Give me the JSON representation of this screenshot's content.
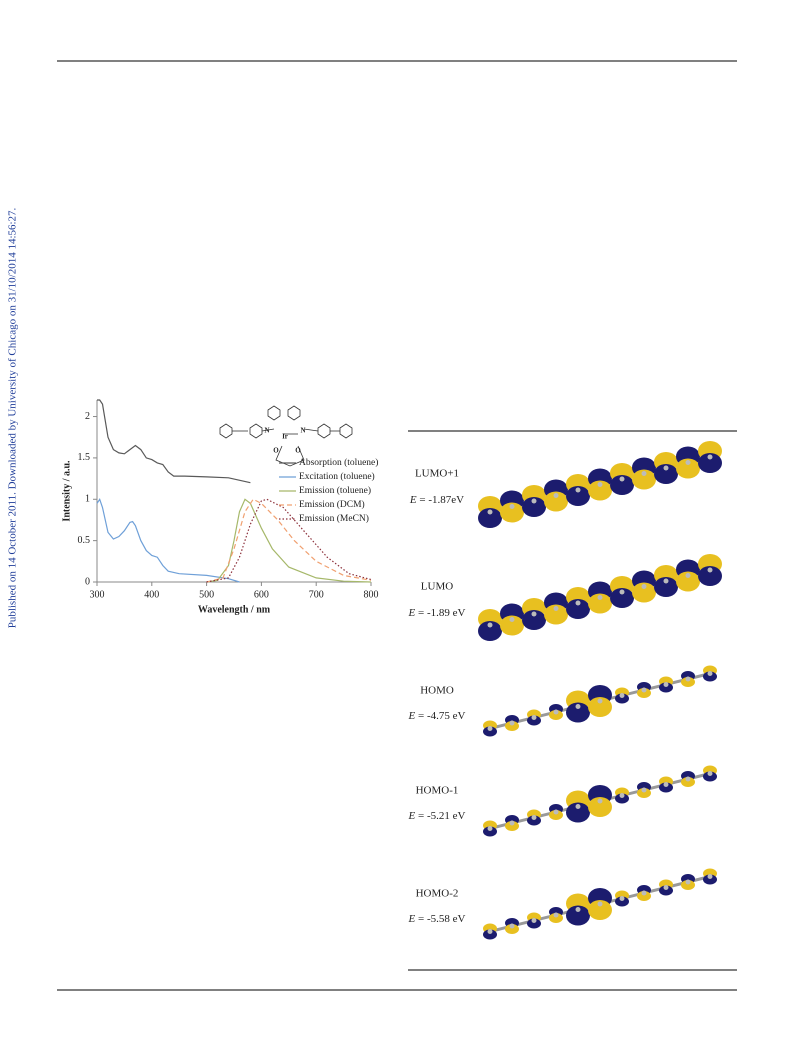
{
  "side_note": "Published on 14 October 2011. Downloaded by University of Chicago on 31/10/2014 14:56:27.",
  "chart_data": {
    "type": "line",
    "xlabel": "Wavelength / nm",
    "ylabel": "Intensity / a.u.",
    "xlim": [
      300,
      800
    ],
    "ylim": [
      0,
      2.2
    ],
    "xticks": [
      300,
      400,
      500,
      600,
      700,
      800
    ],
    "yticks": [
      0,
      0.5,
      1,
      1.5,
      2
    ],
    "legend": "upper right",
    "structure_labels": [
      "N",
      "Ir",
      "N",
      "O",
      "O"
    ],
    "series": [
      {
        "name": "Absorption (toluene)",
        "color": "#595959",
        "dash": "solid",
        "x": [
          300,
          305,
          310,
          320,
          330,
          340,
          350,
          360,
          370,
          380,
          390,
          400,
          410,
          420,
          430,
          440,
          460,
          500,
          540,
          580
        ],
        "values": [
          2.2,
          2.2,
          2.15,
          1.75,
          1.6,
          1.56,
          1.55,
          1.6,
          1.65,
          1.6,
          1.5,
          1.48,
          1.44,
          1.42,
          1.33,
          1.28,
          1.28,
          1.27,
          1.26,
          1.2
        ]
      },
      {
        "name": "Excitation (toluene)",
        "color": "#6fa0d8",
        "dash": "solid",
        "x": [
          300,
          305,
          310,
          320,
          330,
          340,
          350,
          360,
          365,
          370,
          380,
          390,
          400,
          410,
          420,
          430,
          450,
          500,
          540,
          560
        ],
        "values": [
          0.95,
          1.0,
          0.9,
          0.6,
          0.52,
          0.55,
          0.62,
          0.72,
          0.73,
          0.68,
          0.5,
          0.38,
          0.32,
          0.3,
          0.2,
          0.13,
          0.1,
          0.08,
          0.04,
          0
        ]
      },
      {
        "name": "Emission (toluene)",
        "color": "#a6b86a",
        "dash": "solid",
        "x": [
          500,
          520,
          540,
          550,
          560,
          570,
          580,
          600,
          620,
          650,
          700,
          750,
          800
        ],
        "values": [
          0,
          0.02,
          0.2,
          0.5,
          0.85,
          1.0,
          0.95,
          0.65,
          0.4,
          0.18,
          0.05,
          0.01,
          0
        ]
      },
      {
        "name": "Emission (DCM)",
        "color": "#f0a070",
        "dash": "dashed",
        "x": [
          500,
          530,
          550,
          570,
          585,
          600,
          630,
          660,
          700,
          750,
          800
        ],
        "values": [
          0,
          0.05,
          0.4,
          0.85,
          1.0,
          0.95,
          0.75,
          0.5,
          0.25,
          0.08,
          0.02
        ]
      },
      {
        "name": "Emission (MeCN)",
        "color": "#8b2f3a",
        "dash": "dotted",
        "x": [
          500,
          540,
          560,
          580,
          600,
          610,
          640,
          680,
          720,
          760,
          800
        ],
        "values": [
          0,
          0.05,
          0.3,
          0.7,
          0.98,
          1.0,
          0.9,
          0.6,
          0.3,
          0.1,
          0.03
        ]
      }
    ]
  },
  "orbitals": [
    {
      "label": "LUMO+1",
      "symbol": "E",
      "energy": "= -1.87eV"
    },
    {
      "label": "LUMO",
      "symbol": "E",
      "energy": "= -1.89 eV"
    },
    {
      "label": "HOMO",
      "symbol": "E",
      "energy": "= -4.75 eV"
    },
    {
      "label": "HOMO-1",
      "symbol": "E",
      "energy": "= -5.21 eV"
    },
    {
      "label": "HOMO-2",
      "symbol": "E",
      "energy": "= -5.58 eV"
    }
  ]
}
